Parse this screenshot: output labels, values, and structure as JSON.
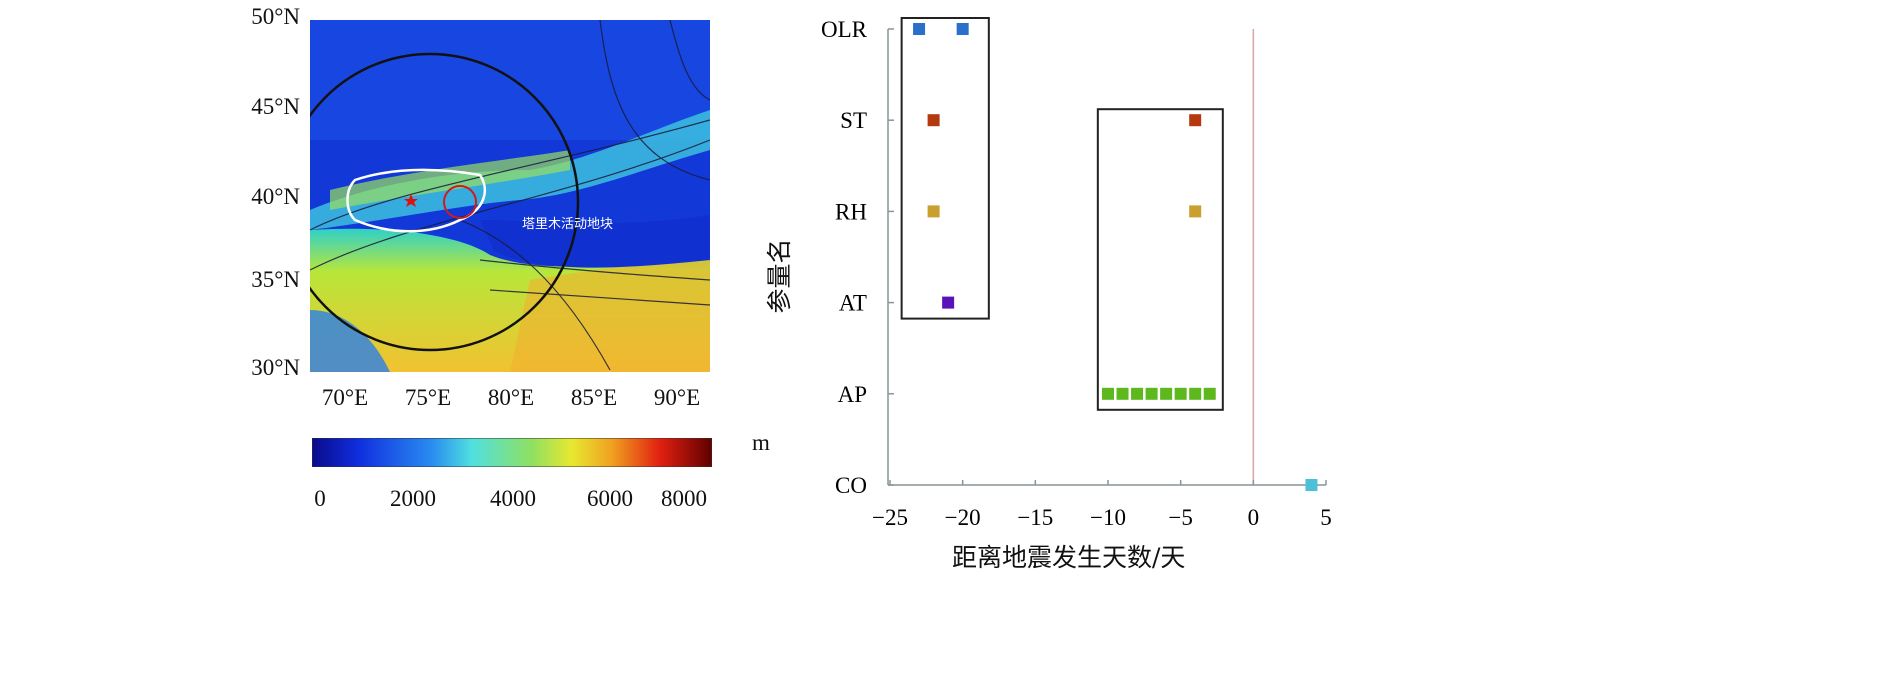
{
  "map": {
    "lat_labels": [
      "50°N",
      "45°N",
      "40°N",
      "35°N",
      "30°N"
    ],
    "lon_labels": [
      "70°E",
      "75°E",
      "80°E",
      "85°E",
      "90°E"
    ],
    "block_label": "塔里木活动地块",
    "colorbar": {
      "unit": "m",
      "ticks": [
        "0",
        "2000",
        "4000",
        "6000",
        "8000"
      ]
    }
  },
  "chart_data": {
    "type": "scatter",
    "xlabel": "距离地震发生天数/天",
    "ylabel": "参量名",
    "xlim": [
      -25,
      5
    ],
    "xticks": [
      "−25",
      "−20",
      "−15",
      "−10",
      "−5",
      "0",
      "5"
    ],
    "xtick_values": [
      -25,
      -20,
      -15,
      -10,
      -5,
      0,
      5
    ],
    "categories": [
      "OLR",
      "ST",
      "RH",
      "AT",
      "AP",
      "CO"
    ],
    "series": [
      {
        "name": "OLR",
        "color": "#2a6fc9",
        "x": [
          -23,
          -20
        ]
      },
      {
        "name": "ST",
        "color": "#b5390f",
        "x": [
          -22,
          -4
        ]
      },
      {
        "name": "RH",
        "color": "#c9a030",
        "x": [
          -22,
          -4
        ]
      },
      {
        "name": "AT",
        "color": "#5a12b8",
        "x": [
          -21
        ]
      },
      {
        "name": "AP",
        "color": "#5cb81c",
        "x": [
          -10,
          -9,
          -8,
          -7,
          -6,
          -5,
          -4,
          -3
        ]
      },
      {
        "name": "CO",
        "color": "#4cc0d8",
        "x": [
          4
        ]
      }
    ],
    "reference_line_x": 0,
    "boxes": [
      {
        "x_range": [
          -24.2,
          -18.2
        ],
        "categories": [
          "OLR",
          "AT"
        ]
      },
      {
        "x_range": [
          -10.7,
          -2.1
        ],
        "categories": [
          "ST",
          "AP"
        ]
      }
    ]
  }
}
